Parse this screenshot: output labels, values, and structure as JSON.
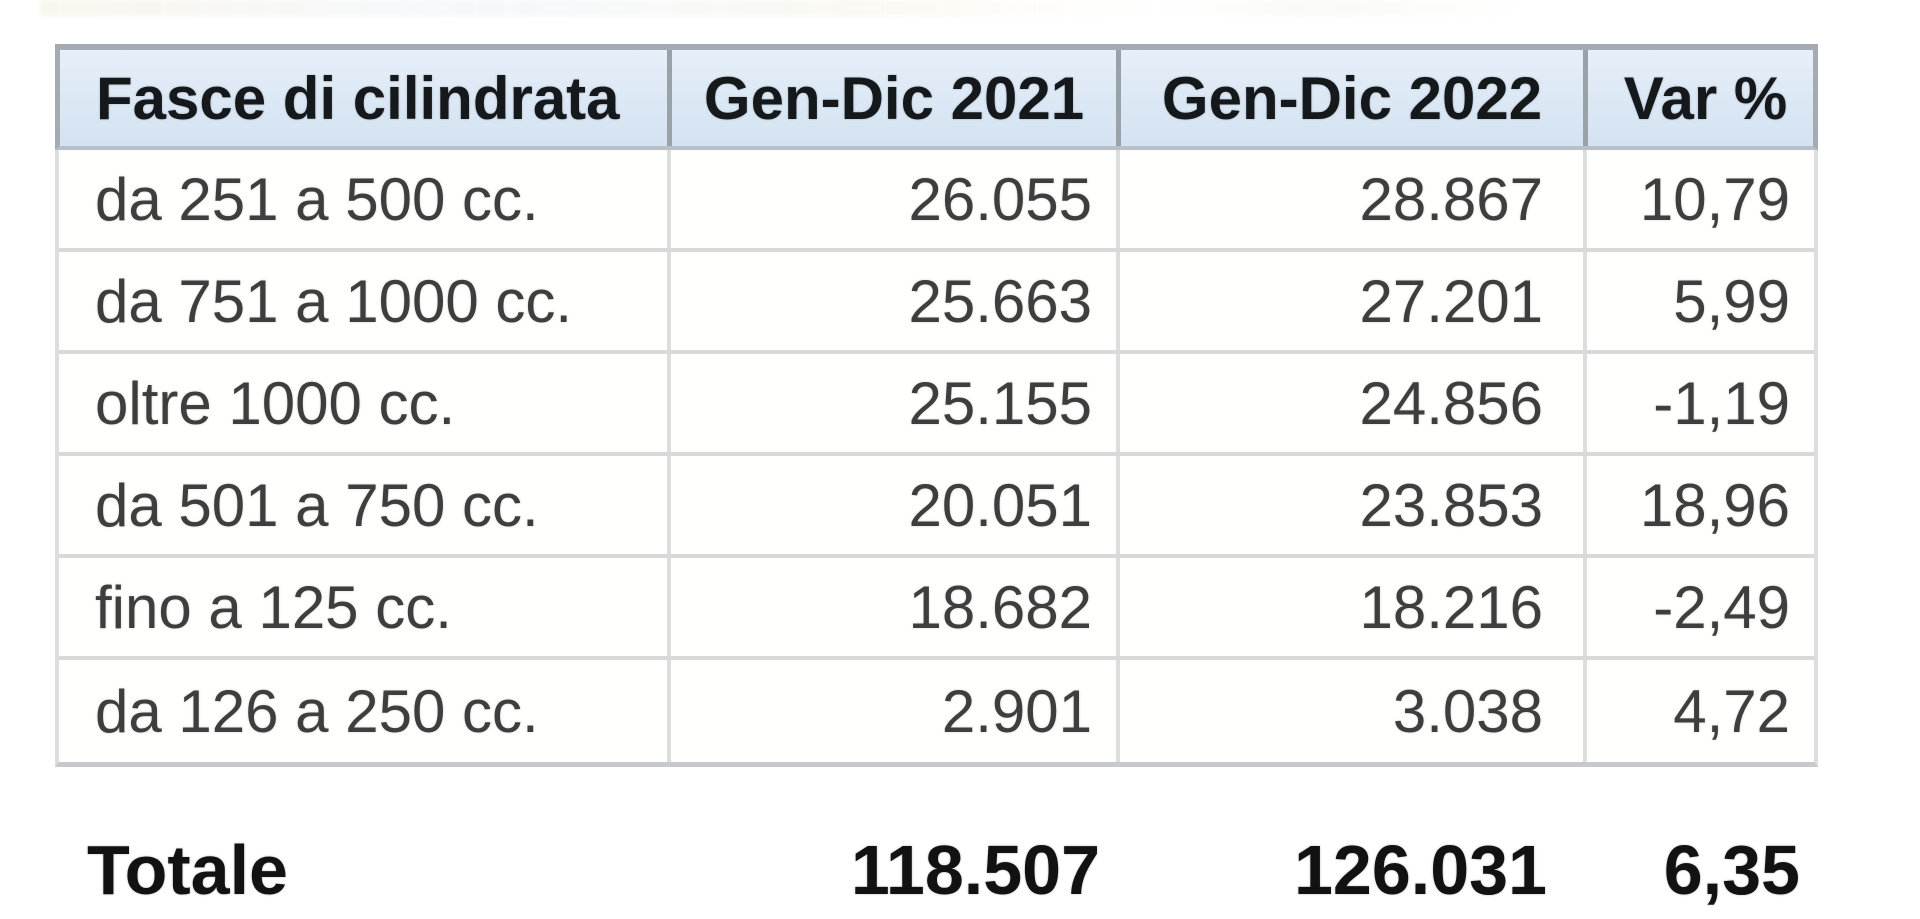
{
  "chart_data": {
    "type": "table",
    "title": "",
    "columns": [
      "Fasce di cilindrata",
      "Gen-Dic 2021",
      "Gen-Dic 2022",
      "Var %"
    ],
    "rows": [
      {
        "label": "da 251 a 500 cc.",
        "y2021": "26.055",
        "y2022": "28.867",
        "var": "10,79"
      },
      {
        "label": "da 751 a 1000 cc.",
        "y2021": "25.663",
        "y2022": "27.201",
        "var": "5,99"
      },
      {
        "label": "oltre 1000 cc.",
        "y2021": "25.155",
        "y2022": "24.856",
        "var": "-1,19"
      },
      {
        "label": "da 501 a 750 cc.",
        "y2021": "20.051",
        "y2022": "23.853",
        "var": "18,96"
      },
      {
        "label": "fino a 125 cc.",
        "y2021": "18.682",
        "y2022": "18.216",
        "var": "-2,49"
      },
      {
        "label": "da 126 a 250 cc.",
        "y2021": "2.901",
        "y2022": "3.038",
        "var": "4,72"
      }
    ],
    "total": {
      "label": "Totale",
      "y2021": "118.507",
      "y2022": "126.031",
      "var": "6,35"
    },
    "number_format": "it-IT (thousands '.', decimal ',')",
    "layout_hints": {
      "grid": "on",
      "header_background": "light-blue",
      "total_row": "borderless, bold"
    }
  },
  "colors": {
    "header_bg": "#dde9f5",
    "header_border": "#9aa1a8",
    "body_border": "#d8d9d9",
    "header_text": "#16191c",
    "body_text": "#3e3e3e",
    "total_text": "#121212",
    "page_bg": "#ffffff"
  }
}
